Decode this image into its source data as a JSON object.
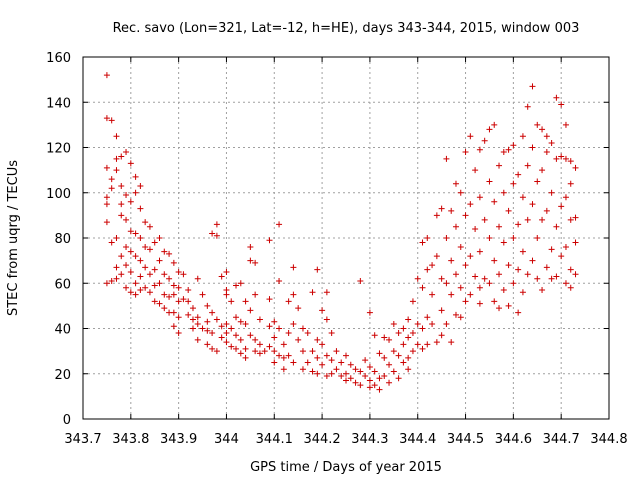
{
  "chart_data": {
    "type": "scatter",
    "title": "Rec. savo (Lon=321, Lat=-12, h=HE), days 343-344, 2015, window 003",
    "xlabel": "GPS time / Days of year 2015",
    "ylabel": "STEC from uqrg / TECUs",
    "xlim": [
      343.7,
      344.8
    ],
    "ylim": [
      0,
      160
    ],
    "xticks": [
      343.7,
      343.8,
      343.9,
      344.0,
      344.1,
      344.2,
      344.3,
      344.4,
      344.5,
      344.6,
      344.7,
      344.8
    ],
    "xtick_labels": [
      "343.7",
      "343.8",
      "343.9",
      "344",
      "344.1",
      "344.2",
      "344.3",
      "344.4",
      "344.5",
      "344.6",
      "344.7",
      "344.8"
    ],
    "yticks": [
      0,
      20,
      40,
      60,
      80,
      100,
      120,
      140,
      160
    ],
    "ytick_labels": [
      "0",
      "20",
      "40",
      "60",
      "80",
      "100",
      "120",
      "140",
      "160"
    ],
    "grid": true,
    "legend": "none",
    "marker": "plus",
    "color": "#cc0000",
    "points": [
      [
        343.75,
        152
      ],
      [
        343.75,
        133
      ],
      [
        343.76,
        132
      ],
      [
        343.75,
        111
      ],
      [
        343.75,
        98
      ],
      [
        343.75,
        95
      ],
      [
        343.76,
        106
      ],
      [
        343.76,
        102
      ],
      [
        343.75,
        87
      ],
      [
        343.76,
        78
      ],
      [
        343.75,
        60
      ],
      [
        343.76,
        61
      ],
      [
        343.77,
        125
      ],
      [
        343.77,
        115
      ],
      [
        343.78,
        116
      ],
      [
        343.77,
        110
      ],
      [
        343.78,
        103
      ],
      [
        343.78,
        95
      ],
      [
        343.78,
        90
      ],
      [
        343.77,
        80
      ],
      [
        343.78,
        72
      ],
      [
        343.77,
        67
      ],
      [
        343.78,
        64
      ],
      [
        343.77,
        62
      ],
      [
        343.79,
        118
      ],
      [
        343.8,
        113
      ],
      [
        343.79,
        99
      ],
      [
        343.8,
        96
      ],
      [
        343.79,
        88
      ],
      [
        343.8,
        83
      ],
      [
        343.79,
        76
      ],
      [
        343.8,
        74
      ],
      [
        343.79,
        68
      ],
      [
        343.8,
        65
      ],
      [
        343.79,
        58
      ],
      [
        343.8,
        56
      ],
      [
        343.81,
        107
      ],
      [
        343.82,
        103
      ],
      [
        343.81,
        100
      ],
      [
        343.82,
        93
      ],
      [
        343.81,
        82
      ],
      [
        343.82,
        80
      ],
      [
        343.81,
        72
      ],
      [
        343.82,
        70
      ],
      [
        343.81,
        60
      ],
      [
        343.82,
        57
      ],
      [
        343.81,
        55
      ],
      [
        343.82,
        63
      ],
      [
        343.83,
        87
      ],
      [
        343.84,
        85
      ],
      [
        343.83,
        76
      ],
      [
        343.84,
        75
      ],
      [
        343.83,
        67
      ],
      [
        343.84,
        64
      ],
      [
        343.83,
        58
      ],
      [
        343.84,
        56
      ],
      [
        343.85,
        78
      ],
      [
        343.85,
        66
      ],
      [
        343.85,
        59
      ],
      [
        343.85,
        52
      ],
      [
        343.86,
        80
      ],
      [
        343.87,
        74
      ],
      [
        343.86,
        70
      ],
      [
        343.87,
        64
      ],
      [
        343.86,
        60
      ],
      [
        343.87,
        55
      ],
      [
        343.86,
        51
      ],
      [
        343.87,
        49
      ],
      [
        343.88,
        73
      ],
      [
        343.88,
        62
      ],
      [
        343.88,
        54
      ],
      [
        343.88,
        47
      ],
      [
        343.89,
        69
      ],
      [
        343.9,
        65
      ],
      [
        343.89,
        59
      ],
      [
        343.9,
        58
      ],
      [
        343.89,
        55
      ],
      [
        343.9,
        52
      ],
      [
        343.89,
        47
      ],
      [
        343.9,
        45
      ],
      [
        343.89,
        41
      ],
      [
        343.9,
        38
      ],
      [
        343.91,
        64
      ],
      [
        343.91,
        53
      ],
      [
        343.92,
        57
      ],
      [
        343.92,
        52
      ],
      [
        343.92,
        46
      ],
      [
        343.93,
        49
      ],
      [
        343.93,
        44
      ],
      [
        343.93,
        40
      ],
      [
        343.94,
        62
      ],
      [
        343.94,
        45
      ],
      [
        343.94,
        42
      ],
      [
        343.94,
        35
      ],
      [
        343.95,
        55
      ],
      [
        343.95,
        40
      ],
      [
        343.96,
        50
      ],
      [
        343.96,
        43
      ],
      [
        343.96,
        39
      ],
      [
        343.96,
        33
      ],
      [
        343.97,
        82
      ],
      [
        343.97,
        47
      ],
      [
        343.97,
        38
      ],
      [
        343.97,
        31
      ],
      [
        343.98,
        86
      ],
      [
        343.98,
        81
      ],
      [
        343.98,
        44
      ],
      [
        343.98,
        30
      ],
      [
        343.99,
        63
      ],
      [
        343.99,
        41
      ],
      [
        343.99,
        36
      ],
      [
        344.0,
        65
      ],
      [
        344.0,
        57
      ],
      [
        344.0,
        55
      ],
      [
        344.0,
        42
      ],
      [
        344.0,
        38
      ],
      [
        344.0,
        34
      ],
      [
        344.01,
        52
      ],
      [
        344.01,
        40
      ],
      [
        344.01,
        32
      ],
      [
        344.02,
        59
      ],
      [
        344.02,
        45
      ],
      [
        344.02,
        37
      ],
      [
        344.02,
        31
      ],
      [
        344.03,
        60
      ],
      [
        344.03,
        43
      ],
      [
        344.03,
        35
      ],
      [
        344.03,
        29
      ],
      [
        344.04,
        52
      ],
      [
        344.04,
        42
      ],
      [
        344.04,
        31
      ],
      [
        344.04,
        27
      ],
      [
        344.05,
        76
      ],
      [
        344.05,
        70
      ],
      [
        344.05,
        48
      ],
      [
        344.05,
        37
      ],
      [
        344.06,
        69
      ],
      [
        344.06,
        55
      ],
      [
        344.06,
        35
      ],
      [
        344.06,
        30
      ],
      [
        344.07,
        44
      ],
      [
        344.07,
        33
      ],
      [
        344.07,
        29
      ],
      [
        344.08,
        30
      ],
      [
        344.09,
        79
      ],
      [
        344.09,
        53
      ],
      [
        344.09,
        41
      ],
      [
        344.09,
        32
      ],
      [
        344.1,
        43
      ],
      [
        344.1,
        36
      ],
      [
        344.1,
        30
      ],
      [
        344.1,
        25
      ],
      [
        344.11,
        86
      ],
      [
        344.11,
        61
      ],
      [
        344.11,
        40
      ],
      [
        344.11,
        28
      ],
      [
        344.12,
        33
      ],
      [
        344.12,
        27
      ],
      [
        344.12,
        22
      ],
      [
        344.13,
        52
      ],
      [
        344.13,
        38
      ],
      [
        344.13,
        28
      ],
      [
        344.14,
        67
      ],
      [
        344.14,
        55
      ],
      [
        344.14,
        42
      ],
      [
        344.14,
        25
      ],
      [
        344.15,
        49
      ],
      [
        344.15,
        35
      ],
      [
        344.16,
        40
      ],
      [
        344.16,
        30
      ],
      [
        344.16,
        22
      ],
      [
        344.17,
        38
      ],
      [
        344.17,
        25
      ],
      [
        344.18,
        56
      ],
      [
        344.18,
        30
      ],
      [
        344.18,
        21
      ],
      [
        344.19,
        66
      ],
      [
        344.19,
        35
      ],
      [
        344.19,
        27
      ],
      [
        344.19,
        20
      ],
      [
        344.2,
        48
      ],
      [
        344.2,
        33
      ],
      [
        344.2,
        24
      ],
      [
        344.21,
        56
      ],
      [
        344.21,
        44
      ],
      [
        344.21,
        28
      ],
      [
        344.21,
        19
      ],
      [
        344.22,
        38
      ],
      [
        344.22,
        26
      ],
      [
        344.22,
        20
      ],
      [
        344.23,
        30
      ],
      [
        344.23,
        22
      ],
      [
        344.24,
        25
      ],
      [
        344.24,
        19
      ],
      [
        344.25,
        28
      ],
      [
        344.25,
        20
      ],
      [
        344.25,
        17
      ],
      [
        344.26,
        24
      ],
      [
        344.26,
        18
      ],
      [
        344.27,
        22
      ],
      [
        344.27,
        16
      ],
      [
        344.28,
        61
      ],
      [
        344.28,
        21
      ],
      [
        344.28,
        15
      ],
      [
        344.29,
        26
      ],
      [
        344.29,
        19
      ],
      [
        344.3,
        47
      ],
      [
        344.3,
        23
      ],
      [
        344.3,
        17
      ],
      [
        344.3,
        14
      ],
      [
        344.31,
        37
      ],
      [
        344.31,
        21
      ],
      [
        344.31,
        15
      ],
      [
        344.32,
        29
      ],
      [
        344.32,
        18
      ],
      [
        344.32,
        13
      ],
      [
        344.33,
        36
      ],
      [
        344.33,
        27
      ],
      [
        344.33,
        19
      ],
      [
        344.34,
        35
      ],
      [
        344.34,
        24
      ],
      [
        344.34,
        16
      ],
      [
        344.35,
        42
      ],
      [
        344.35,
        30
      ],
      [
        344.35,
        21
      ],
      [
        344.36,
        38
      ],
      [
        344.36,
        28
      ],
      [
        344.36,
        18
      ],
      [
        344.37,
        40
      ],
      [
        344.37,
        33
      ],
      [
        344.37,
        25
      ],
      [
        344.38,
        44
      ],
      [
        344.38,
        36
      ],
      [
        344.38,
        27
      ],
      [
        344.39,
        52
      ],
      [
        344.39,
        38
      ],
      [
        344.39,
        30
      ],
      [
        344.4,
        62
      ],
      [
        344.4,
        42
      ],
      [
        344.4,
        33
      ],
      [
        344.41,
        78
      ],
      [
        344.41,
        58
      ],
      [
        344.41,
        40
      ],
      [
        344.42,
        80
      ],
      [
        344.42,
        66
      ],
      [
        344.42,
        45
      ],
      [
        344.42,
        33
      ],
      [
        344.43,
        68
      ],
      [
        344.43,
        55
      ],
      [
        344.43,
        42
      ],
      [
        344.44,
        90
      ],
      [
        344.44,
        72
      ],
      [
        344.45,
        93
      ],
      [
        344.45,
        62
      ],
      [
        344.45,
        48
      ],
      [
        344.45,
        37
      ],
      [
        344.46,
        115
      ],
      [
        344.46,
        80
      ],
      [
        344.46,
        60
      ],
      [
        344.46,
        42
      ],
      [
        344.47,
        92
      ],
      [
        344.47,
        70
      ],
      [
        344.47,
        55
      ],
      [
        344.48,
        104
      ],
      [
        344.48,
        85
      ],
      [
        344.48,
        64
      ],
      [
        344.48,
        46
      ],
      [
        344.49,
        100
      ],
      [
        344.49,
        76
      ],
      [
        344.49,
        58
      ],
      [
        344.5,
        118
      ],
      [
        344.5,
        90
      ],
      [
        344.5,
        68
      ],
      [
        344.5,
        52
      ],
      [
        344.51,
        125
      ],
      [
        344.51,
        95
      ],
      [
        344.51,
        72
      ],
      [
        344.51,
        55
      ],
      [
        344.52,
        110
      ],
      [
        344.52,
        84
      ],
      [
        344.52,
        63
      ],
      [
        344.53,
        119
      ],
      [
        344.53,
        98
      ],
      [
        344.53,
        74
      ],
      [
        344.53,
        58
      ],
      [
        344.54,
        123
      ],
      [
        344.54,
        88
      ],
      [
        344.54,
        62
      ],
      [
        344.55,
        128
      ],
      [
        344.55,
        105
      ],
      [
        344.55,
        80
      ],
      [
        344.55,
        60
      ],
      [
        344.56,
        130
      ],
      [
        344.56,
        96
      ],
      [
        344.56,
        70
      ],
      [
        344.56,
        52
      ],
      [
        344.57,
        112
      ],
      [
        344.57,
        85
      ],
      [
        344.57,
        64
      ],
      [
        344.58,
        118
      ],
      [
        344.58,
        100
      ],
      [
        344.58,
        78
      ],
      [
        344.58,
        57
      ],
      [
        344.59,
        119
      ],
      [
        344.59,
        92
      ],
      [
        344.59,
        68
      ],
      [
        344.59,
        50
      ],
      [
        344.6,
        121
      ],
      [
        344.6,
        104
      ],
      [
        344.6,
        80
      ],
      [
        344.6,
        60
      ],
      [
        344.61,
        108
      ],
      [
        344.61,
        86
      ],
      [
        344.61,
        66
      ],
      [
        344.62,
        125
      ],
      [
        344.62,
        98
      ],
      [
        344.62,
        74
      ],
      [
        344.62,
        56
      ],
      [
        344.63,
        138
      ],
      [
        344.63,
        112
      ],
      [
        344.63,
        88
      ],
      [
        344.63,
        64
      ],
      [
        344.64,
        147
      ],
      [
        344.64,
        120
      ],
      [
        344.64,
        95
      ],
      [
        344.64,
        70
      ],
      [
        344.65,
        130
      ],
      [
        344.65,
        105
      ],
      [
        344.65,
        80
      ],
      [
        344.65,
        62
      ],
      [
        344.66,
        128
      ],
      [
        344.66,
        110
      ],
      [
        344.66,
        88
      ],
      [
        344.67,
        125
      ],
      [
        344.67,
        118
      ],
      [
        344.67,
        92
      ],
      [
        344.67,
        67
      ],
      [
        344.68,
        122
      ],
      [
        344.68,
        100
      ],
      [
        344.68,
        75
      ],
      [
        344.69,
        142
      ],
      [
        344.69,
        115
      ],
      [
        344.69,
        85
      ],
      [
        344.69,
        63
      ],
      [
        344.7,
        139
      ],
      [
        344.7,
        116
      ],
      [
        344.7,
        94
      ],
      [
        344.7,
        72
      ],
      [
        344.71,
        115
      ],
      [
        344.71,
        98
      ],
      [
        344.71,
        76
      ],
      [
        344.71,
        60
      ],
      [
        344.72,
        114
      ],
      [
        344.72,
        104
      ],
      [
        344.72,
        88
      ],
      [
        344.72,
        66
      ],
      [
        344.73,
        111
      ],
      [
        344.73,
        89
      ],
      [
        344.73,
        78
      ],
      [
        344.73,
        64
      ],
      [
        344.72,
        58
      ],
      [
        344.71,
        130
      ],
      [
        344.68,
        62
      ],
      [
        344.66,
        57
      ],
      [
        344.61,
        47
      ],
      [
        344.57,
        49
      ],
      [
        344.53,
        51
      ],
      [
        344.49,
        45
      ],
      [
        344.47,
        34
      ],
      [
        344.44,
        34
      ],
      [
        344.41,
        31
      ],
      [
        344.38,
        22
      ]
    ]
  }
}
